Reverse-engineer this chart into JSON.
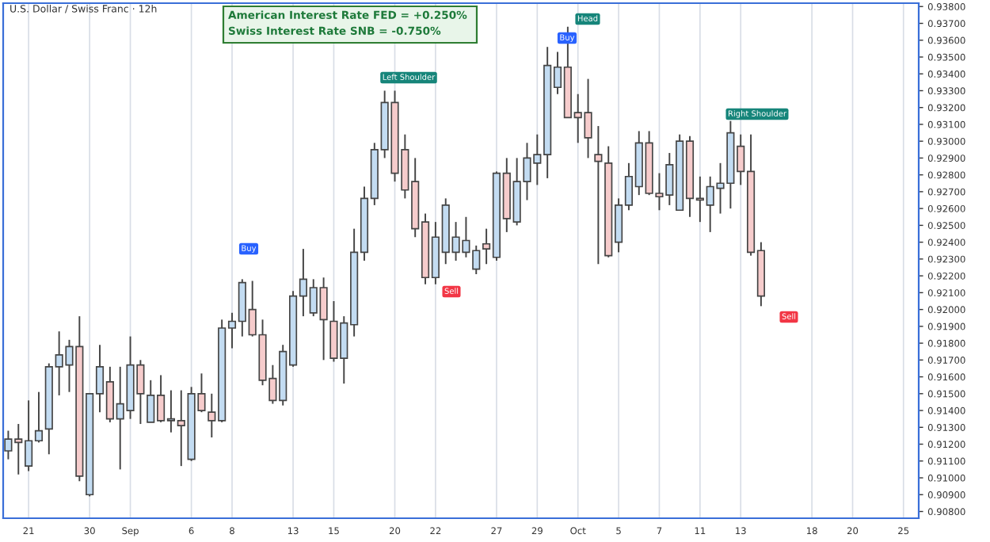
{
  "chart_data": {
    "type": "candlestick",
    "title": "U.S. Dollar / Swiss Franc · 12h",
    "annotations": [
      "American Interest Rate FED = +0.250%",
      "Swiss Interest Rate SNB = -0.750%",
      "Left Shoulder",
      "Head",
      "Right Shoulder",
      "Buy",
      "Buy",
      "Sell",
      "Sell"
    ],
    "categories": [
      null,
      null,
      "21",
      null,
      null,
      null,
      null,
      null,
      "30",
      null,
      null,
      null,
      "Sep",
      null,
      null,
      null,
      null,
      null,
      "6",
      null,
      null,
      null,
      "8",
      null,
      null,
      null,
      null,
      null,
      "13",
      null,
      null,
      null,
      "15",
      null,
      null,
      null,
      null,
      null,
      "20",
      null,
      null,
      null,
      "22",
      null,
      null,
      null,
      null,
      null,
      "27",
      null,
      null,
      null,
      "29",
      null,
      null,
      null,
      "Oct",
      null,
      null,
      null,
      "5",
      null,
      null,
      null,
      "7",
      null,
      null,
      null,
      "11",
      null,
      null,
      null,
      "13",
      null,
      null,
      null,
      null,
      null,
      null,
      "18",
      null,
      null,
      null,
      "20",
      null,
      null,
      null,
      null,
      "25",
      null
    ],
    "ohlc": [
      [
        0.9116,
        0.9128,
        0.9111,
        0.9123
      ],
      [
        0.9123,
        0.9132,
        0.9102,
        0.9121
      ],
      [
        0.9107,
        0.9146,
        0.9104,
        0.9122
      ],
      [
        0.9122,
        0.9151,
        0.9121,
        0.9128
      ],
      [
        0.9129,
        0.9168,
        0.9114,
        0.9166
      ],
      [
        0.9166,
        0.9187,
        0.9149,
        0.9173
      ],
      [
        0.9167,
        0.9182,
        0.9151,
        0.9178
      ],
      [
        0.9178,
        0.9196,
        0.9098,
        0.9101
      ],
      [
        0.909,
        0.915,
        0.9089,
        0.915
      ],
      [
        0.915,
        0.9179,
        0.9139,
        0.9166
      ],
      [
        0.9157,
        0.9166,
        0.9133,
        0.9135
      ],
      [
        0.9135,
        0.9166,
        0.9105,
        0.9144
      ],
      [
        0.914,
        0.9184,
        0.9135,
        0.9167
      ],
      [
        0.9167,
        0.917,
        0.9132,
        0.915
      ],
      [
        0.9133,
        0.9158,
        0.9133,
        0.9149
      ],
      [
        0.9149,
        0.9161,
        0.9133,
        0.9134
      ],
      [
        0.9134,
        0.9152,
        0.9127,
        0.9135
      ],
      [
        0.9134,
        0.9152,
        0.9107,
        0.9131
      ],
      [
        0.9111,
        0.9154,
        0.911,
        0.915
      ],
      [
        0.915,
        0.9162,
        0.9139,
        0.914
      ],
      [
        0.9139,
        0.915,
        0.9124,
        0.9134
      ],
      [
        0.9134,
        0.9194,
        0.9133,
        0.9189
      ],
      [
        0.9189,
        0.9198,
        0.9177,
        0.9193
      ],
      [
        0.9193,
        0.9218,
        0.9184,
        0.9216
      ],
      [
        0.92,
        0.9217,
        0.9184,
        0.9185
      ],
      [
        0.9185,
        0.9194,
        0.9155,
        0.9158
      ],
      [
        0.9159,
        0.9167,
        0.9144,
        0.9146
      ],
      [
        0.9146,
        0.9179,
        0.9143,
        0.9175
      ],
      [
        0.9167,
        0.9211,
        0.9166,
        0.9208
      ],
      [
        0.9208,
        0.9236,
        0.9196,
        0.9218
      ],
      [
        0.9198,
        0.9218,
        0.9196,
        0.9213
      ],
      [
        0.9213,
        0.9219,
        0.917,
        0.9194
      ],
      [
        0.9193,
        0.9205,
        0.9169,
        0.9171
      ],
      [
        0.9171,
        0.9196,
        0.9156,
        0.9192
      ],
      [
        0.9191,
        0.9248,
        0.9184,
        0.9234
      ],
      [
        0.9234,
        0.9273,
        0.9229,
        0.9266
      ],
      [
        0.9266,
        0.9299,
        0.9262,
        0.9295
      ],
      [
        0.9295,
        0.933,
        0.929,
        0.9323
      ],
      [
        0.9323,
        0.933,
        0.9276,
        0.9281
      ],
      [
        0.9295,
        0.9304,
        0.9266,
        0.9271
      ],
      [
        0.9276,
        0.929,
        0.9243,
        0.9248
      ],
      [
        0.9252,
        0.9257,
        0.9215,
        0.9219
      ],
      [
        0.9219,
        0.9252,
        0.9215,
        0.9243
      ],
      [
        0.9234,
        0.9266,
        0.9227,
        0.9262
      ],
      [
        0.9234,
        0.9252,
        0.9229,
        0.9243
      ],
      [
        0.9234,
        0.9255,
        0.9231,
        0.9241
      ],
      [
        0.9224,
        0.9238,
        0.9221,
        0.9235
      ],
      [
        0.9239,
        0.9248,
        0.9227,
        0.9236
      ],
      [
        0.9231,
        0.9282,
        0.9229,
        0.9281
      ],
      [
        0.9281,
        0.929,
        0.9246,
        0.9254
      ],
      [
        0.9252,
        0.929,
        0.925,
        0.9276
      ],
      [
        0.9276,
        0.9299,
        0.9265,
        0.929
      ],
      [
        0.9287,
        0.9304,
        0.9274,
        0.9292
      ],
      [
        0.9292,
        0.9356,
        0.9278,
        0.9345
      ],
      [
        0.9332,
        0.9353,
        0.9328,
        0.9344
      ],
      [
        0.9344,
        0.9368,
        0.9314,
        0.9314
      ],
      [
        0.9317,
        0.9328,
        0.9299,
        0.9314
      ],
      [
        0.9317,
        0.9337,
        0.929,
        0.9302
      ],
      [
        0.9292,
        0.9309,
        0.9227,
        0.9288
      ],
      [
        0.9287,
        0.9297,
        0.9231,
        0.9232
      ],
      [
        0.924,
        0.9266,
        0.9234,
        0.9262
      ],
      [
        0.9262,
        0.9287,
        0.9259,
        0.9279
      ],
      [
        0.9273,
        0.9306,
        0.9268,
        0.9299
      ],
      [
        0.9299,
        0.9306,
        0.9268,
        0.9269
      ],
      [
        0.9269,
        0.9281,
        0.9259,
        0.9267
      ],
      [
        0.9268,
        0.9293,
        0.9262,
        0.9286
      ],
      [
        0.9259,
        0.9304,
        0.9259,
        0.93
      ],
      [
        0.93,
        0.9303,
        0.9255,
        0.9266
      ],
      [
        0.9266,
        0.9279,
        0.9252,
        0.9265
      ],
      [
        0.9262,
        0.9279,
        0.9246,
        0.9273
      ],
      [
        0.9272,
        0.9287,
        0.9257,
        0.9275
      ],
      [
        0.9275,
        0.9312,
        0.926,
        0.9305
      ],
      [
        0.9297,
        0.9304,
        0.9274,
        0.9282
      ],
      [
        0.9282,
        0.9304,
        0.9232,
        0.9234
      ],
      [
        0.9235,
        0.924,
        0.9202,
        0.9208
      ],
      null,
      null,
      null,
      null,
      null,
      null,
      null,
      null,
      null,
      null,
      null,
      null,
      null,
      null,
      null
    ],
    "ylim": [
      0.9076,
      0.9382
    ],
    "yticks": [
      {
        "value": 0.908,
        "label": "0.90800"
      },
      {
        "value": 0.909,
        "label": "0.90900"
      },
      {
        "value": 0.91,
        "label": "0.91000"
      },
      {
        "value": 0.911,
        "label": "0.91100"
      },
      {
        "value": 0.912,
        "label": "0.91200"
      },
      {
        "value": 0.913,
        "label": "0.91300"
      },
      {
        "value": 0.914,
        "label": "0.91400"
      },
      {
        "value": 0.915,
        "label": "0.91500"
      },
      {
        "value": 0.916,
        "label": "0.91600"
      },
      {
        "value": 0.917,
        "label": "0.91700"
      },
      {
        "value": 0.918,
        "label": "0.91800"
      },
      {
        "value": 0.919,
        "label": "0.91900"
      },
      {
        "value": 0.92,
        "label": "0.92000"
      },
      {
        "value": 0.921,
        "label": "0.92100"
      },
      {
        "value": 0.922,
        "label": "0.92200"
      },
      {
        "value": 0.923,
        "label": "0.92300"
      },
      {
        "value": 0.924,
        "label": "0.92400"
      },
      {
        "value": 0.925,
        "label": "0.92500"
      },
      {
        "value": 0.926,
        "label": "0.92600"
      },
      {
        "value": 0.927,
        "label": "0.92700"
      },
      {
        "value": 0.928,
        "label": "0.92800"
      },
      {
        "value": 0.929,
        "label": "0.92900"
      },
      {
        "value": 0.93,
        "label": "0.93000"
      },
      {
        "value": 0.931,
        "label": "0.93100"
      },
      {
        "value": 0.932,
        "label": "0.93200"
      },
      {
        "value": 0.933,
        "label": "0.93300"
      },
      {
        "value": 0.934,
        "label": "0.93400"
      },
      {
        "value": 0.935,
        "label": "0.93500"
      },
      {
        "value": 0.936,
        "label": "0.93600"
      },
      {
        "value": 0.937,
        "label": "0.93700"
      },
      {
        "value": 0.938,
        "label": "0.93800"
      }
    ],
    "grid": "x"
  }
}
